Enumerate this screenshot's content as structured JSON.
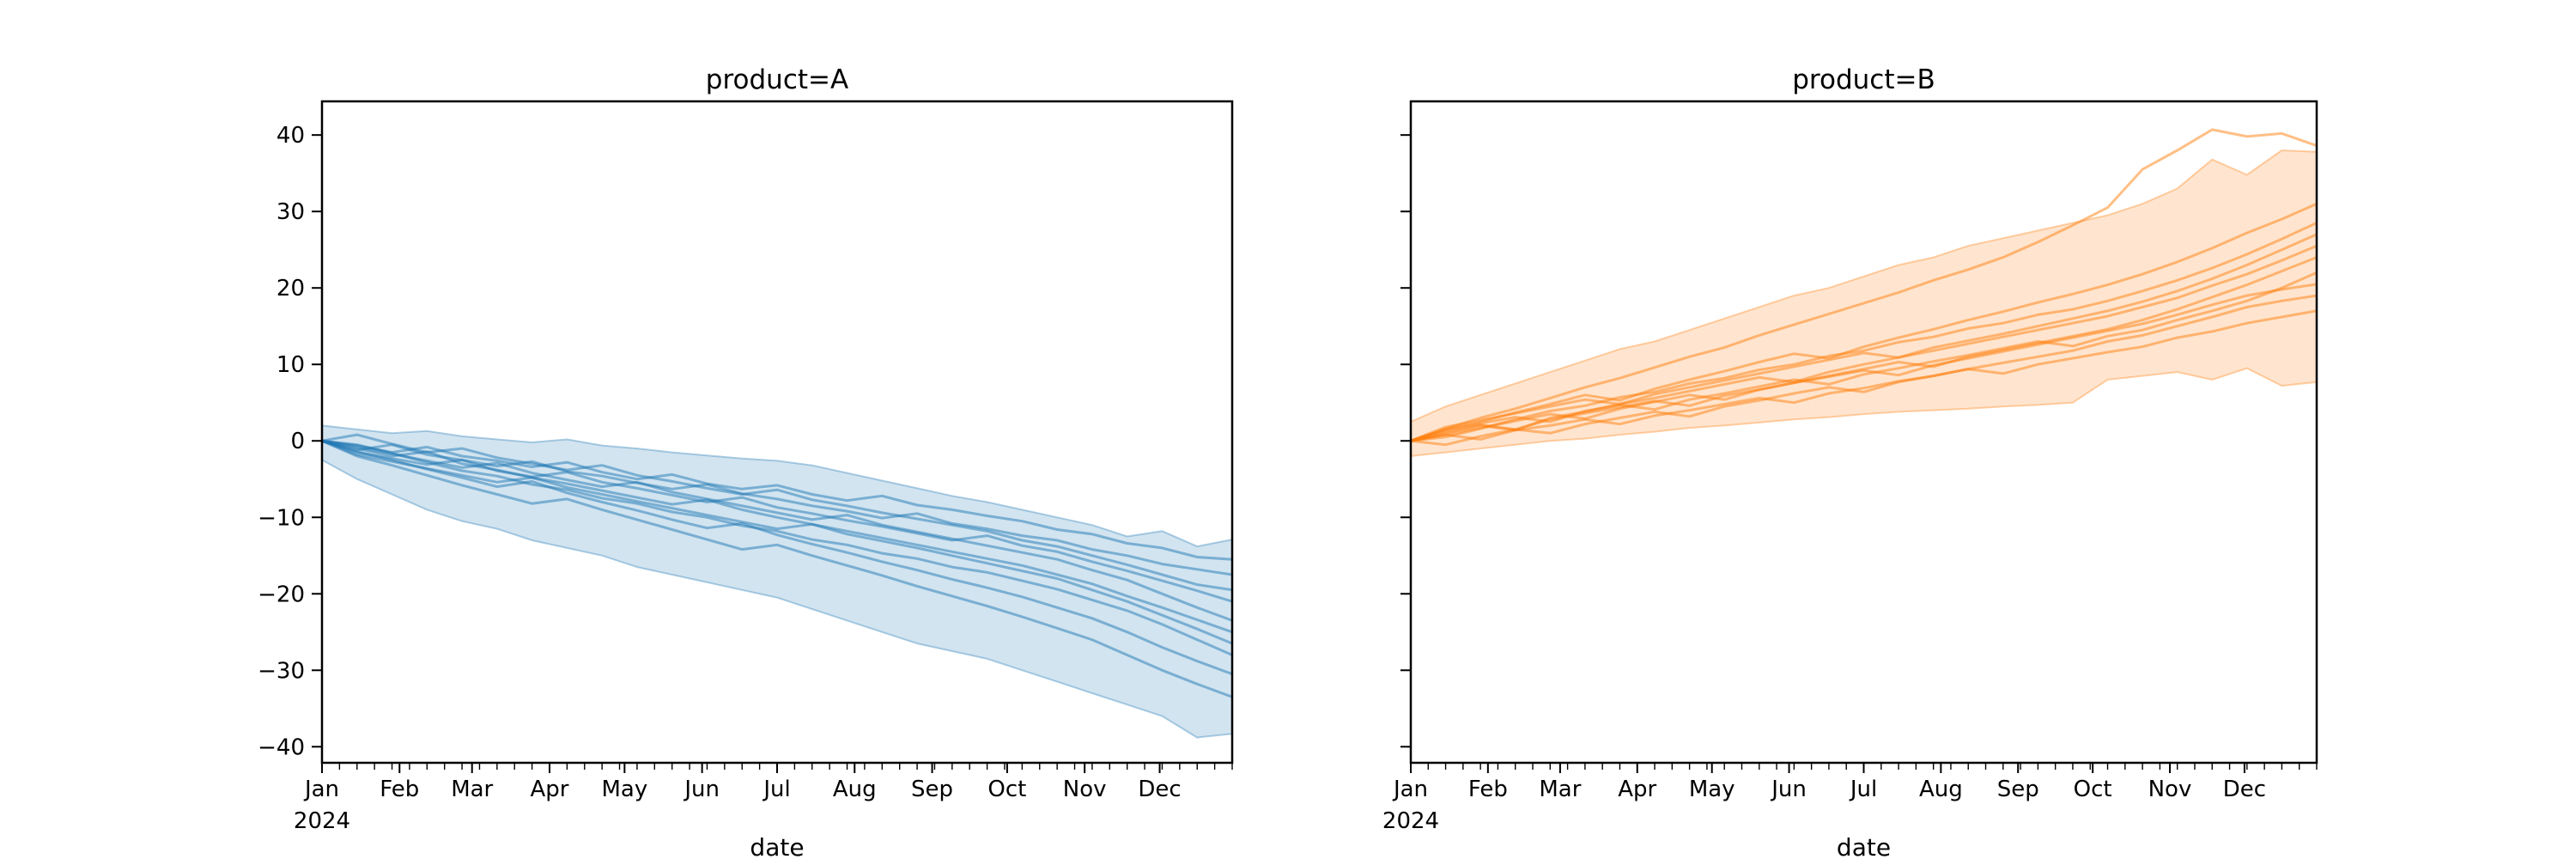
{
  "figure": {
    "background": "#ffffff"
  },
  "chart_data": [
    {
      "type": "line",
      "title": "product=A",
      "xlabel": "date",
      "color": "#1f77b4",
      "x_tick_labels": [
        "Jan",
        "Feb",
        "Mar",
        "Apr",
        "May",
        "Jun",
        "Jul",
        "Aug",
        "Sep",
        "Oct",
        "Nov",
        "Dec"
      ],
      "x_tick_days": [
        0,
        31,
        60,
        91,
        121,
        152,
        182,
        213,
        244,
        274,
        305,
        335
      ],
      "x_first_tick_sublabel": "2024",
      "x_minor_tick_step_days": 7,
      "xlim_days": [
        0,
        364
      ],
      "ylim": [
        -42.1,
        44.4
      ],
      "y_tick_values": [
        40,
        30,
        20,
        10,
        0,
        -10,
        -20,
        -30,
        -40
      ],
      "y_tick_labels": [
        "40",
        "30",
        "20",
        "10",
        "0",
        "−10",
        "−20",
        "−30",
        "−40"
      ],
      "show_y_tick_labels": true,
      "band": {
        "upper": [
          2.0,
          1.5,
          1.0,
          1.3,
          0.6,
          0.2,
          -0.2,
          0.2,
          -0.6,
          -1.0,
          -1.5,
          -1.9,
          -2.3,
          -2.6,
          -3.2,
          -4.2,
          -5.2,
          -6.2,
          -7.2,
          -8.0,
          -9.0,
          -10.0,
          -11.0,
          -12.5,
          -11.8,
          -13.8,
          -12.9
        ],
        "lower": [
          -2.5,
          -5.0,
          -7.0,
          -9.0,
          -10.5,
          -11.5,
          -13.0,
          -14.0,
          -15.0,
          -16.5,
          -17.5,
          -18.5,
          -19.5,
          -20.5,
          -22.0,
          -23.5,
          -25.0,
          -26.5,
          -27.5,
          -28.5,
          -30.0,
          -31.5,
          -33.0,
          -34.5,
          -36.0,
          -38.8,
          -38.3
        ]
      },
      "series": [
        [
          0,
          -0.6,
          -1.5,
          -0.8,
          -2.0,
          -2.6,
          -3.4,
          -2.8,
          -4.1,
          -5.0,
          -4.4,
          -5.6,
          -6.3,
          -5.8,
          -7.0,
          -7.8,
          -7.2,
          -8.4,
          -9.0,
          -9.8,
          -10.5,
          -11.6,
          -12.2,
          -13.4,
          -14.0,
          -15.2,
          -15.5
        ],
        [
          0,
          -1.2,
          -0.5,
          -1.8,
          -2.5,
          -3.3,
          -2.7,
          -4.0,
          -4.6,
          -5.5,
          -6.3,
          -5.7,
          -6.9,
          -7.6,
          -8.5,
          -9.2,
          -10.1,
          -9.5,
          -10.8,
          -11.5,
          -12.4,
          -13.0,
          -14.2,
          -15.0,
          -16.1,
          -16.8,
          -17.5
        ],
        [
          0,
          0.8,
          -0.4,
          -1.5,
          -1.0,
          -2.2,
          -3.0,
          -3.8,
          -3.2,
          -4.5,
          -5.3,
          -6.2,
          -7.0,
          -6.4,
          -7.7,
          -8.5,
          -9.4,
          -10.2,
          -11.0,
          -11.8,
          -13.0,
          -13.8,
          -15.0,
          -16.2,
          -17.5,
          -18.8,
          -19.5
        ],
        [
          0,
          -1.5,
          -2.3,
          -3.1,
          -2.5,
          -3.9,
          -4.7,
          -4.1,
          -5.4,
          -6.2,
          -7.1,
          -8.0,
          -7.4,
          -8.7,
          -9.5,
          -10.4,
          -11.2,
          -12.1,
          -13.0,
          -12.4,
          -13.7,
          -14.5,
          -15.8,
          -17.0,
          -18.3,
          -19.6,
          -21.0
        ],
        [
          0,
          -0.8,
          -1.7,
          -2.6,
          -3.5,
          -2.9,
          -4.2,
          -5.1,
          -6.0,
          -5.4,
          -6.7,
          -7.6,
          -8.5,
          -9.4,
          -10.3,
          -9.7,
          -11.0,
          -11.9,
          -12.8,
          -13.7,
          -14.6,
          -15.5,
          -16.9,
          -18.2,
          -20.0,
          -21.8,
          -23.5
        ],
        [
          0,
          -1.0,
          -2.0,
          -1.4,
          -3.0,
          -3.8,
          -4.8,
          -5.6,
          -6.5,
          -7.4,
          -8.3,
          -7.7,
          -9.0,
          -10.0,
          -10.9,
          -11.8,
          -12.7,
          -13.6,
          -14.5,
          -15.4,
          -16.3,
          -17.5,
          -18.7,
          -20.3,
          -21.8,
          -23.4,
          -25.0
        ],
        [
          0,
          -1.8,
          -2.7,
          -3.6,
          -4.5,
          -5.4,
          -4.8,
          -6.1,
          -7.0,
          -7.9,
          -8.8,
          -9.7,
          -10.6,
          -11.5,
          -10.9,
          -12.2,
          -13.1,
          -14.0,
          -15.0,
          -16.0,
          -17.0,
          -18.0,
          -19.5,
          -21.0,
          -22.8,
          -24.6,
          -26.5
        ],
        [
          0,
          -0.5,
          -1.6,
          -2.8,
          -3.9,
          -4.6,
          -5.7,
          -6.4,
          -7.5,
          -8.2,
          -9.3,
          -10.0,
          -11.1,
          -11.8,
          -12.9,
          -13.6,
          -14.7,
          -15.4,
          -16.5,
          -17.2,
          -18.3,
          -19.4,
          -20.8,
          -22.2,
          -24.0,
          -26.0,
          -28.0
        ],
        [
          0,
          -1.4,
          -2.5,
          -3.7,
          -4.8,
          -6.0,
          -5.3,
          -6.8,
          -8.0,
          -9.1,
          -10.3,
          -11.4,
          -10.8,
          -12.3,
          -13.5,
          -14.6,
          -15.8,
          -16.9,
          -18.1,
          -19.2,
          -20.4,
          -21.8,
          -23.2,
          -25.0,
          -27.0,
          -28.8,
          -30.5
        ],
        [
          0,
          -2.0,
          -3.2,
          -4.5,
          -5.8,
          -7.0,
          -8.2,
          -7.6,
          -9.0,
          -10.3,
          -11.6,
          -12.9,
          -14.2,
          -13.6,
          -15.0,
          -16.3,
          -17.6,
          -19.0,
          -20.3,
          -21.6,
          -23.0,
          -24.5,
          -26.0,
          -28.0,
          -30.0,
          -31.8,
          -33.5
        ]
      ]
    },
    {
      "type": "line",
      "title": "product=B",
      "xlabel": "date",
      "color": "#ff7f0e",
      "x_tick_labels": [
        "Jan",
        "Feb",
        "Mar",
        "Apr",
        "May",
        "Jun",
        "Jul",
        "Aug",
        "Sep",
        "Oct",
        "Nov",
        "Dec"
      ],
      "x_tick_days": [
        0,
        31,
        60,
        91,
        121,
        152,
        182,
        213,
        244,
        274,
        305,
        335
      ],
      "x_first_tick_sublabel": "2024",
      "x_minor_tick_step_days": 7,
      "xlim_days": [
        0,
        364
      ],
      "ylim": [
        -42.1,
        44.4
      ],
      "y_tick_values": [
        40,
        30,
        20,
        10,
        0,
        -10,
        -20,
        -30,
        -40
      ],
      "y_tick_labels": [
        "40",
        "30",
        "20",
        "10",
        "0",
        "−10",
        "−20",
        "−30",
        "−40"
      ],
      "show_y_tick_labels": false,
      "band": {
        "upper": [
          2.5,
          4.5,
          6.0,
          7.5,
          9.0,
          10.5,
          12.0,
          13.0,
          14.5,
          16.0,
          17.5,
          19.0,
          20.0,
          21.5,
          23.0,
          24.0,
          25.5,
          26.5,
          27.5,
          28.5,
          29.5,
          31.0,
          33.0,
          36.8,
          34.8,
          38.0,
          37.8
        ],
        "lower": [
          -2.0,
          -1.5,
          -1.0,
          -0.5,
          0.0,
          0.3,
          0.8,
          1.2,
          1.7,
          2.0,
          2.4,
          2.8,
          3.1,
          3.5,
          3.8,
          4.0,
          4.2,
          4.5,
          4.7,
          5.0,
          8.0,
          8.5,
          9.0,
          8.0,
          9.5,
          7.2,
          7.7
        ]
      },
      "series": [
        [
          0,
          0.8,
          0.2,
          1.4,
          2.0,
          2.8,
          2.2,
          3.3,
          4.0,
          4.8,
          5.6,
          5.0,
          6.2,
          6.9,
          7.8,
          8.5,
          9.4,
          8.8,
          10.0,
          10.8,
          11.6,
          12.3,
          13.5,
          14.3,
          15.4,
          16.2,
          17.0
        ],
        [
          0,
          -0.5,
          0.6,
          1.5,
          1.0,
          2.2,
          3.0,
          3.8,
          3.2,
          4.5,
          5.3,
          6.2,
          7.0,
          6.4,
          7.7,
          8.5,
          9.4,
          10.2,
          11.0,
          11.8,
          13.0,
          13.8,
          15.0,
          16.2,
          17.5,
          18.3,
          19.0
        ],
        [
          0,
          1.2,
          2.1,
          1.5,
          2.8,
          3.6,
          4.4,
          5.2,
          4.6,
          5.9,
          6.7,
          7.6,
          8.4,
          9.2,
          8.6,
          9.9,
          10.8,
          11.7,
          12.6,
          13.5,
          14.4,
          15.3,
          16.5,
          17.8,
          19.0,
          19.8,
          20.5
        ],
        [
          0,
          1.5,
          2.3,
          3.1,
          2.5,
          3.9,
          4.7,
          4.1,
          5.4,
          6.2,
          7.1,
          8.0,
          7.4,
          8.7,
          9.5,
          10.4,
          11.2,
          12.1,
          13.0,
          12.4,
          13.7,
          14.5,
          15.8,
          17.0,
          18.3,
          20.0,
          22.0
        ],
        [
          0,
          0.8,
          1.7,
          2.6,
          3.5,
          2.9,
          4.2,
          5.1,
          6.0,
          5.4,
          6.7,
          7.6,
          8.5,
          9.4,
          10.3,
          9.7,
          11.0,
          11.9,
          12.8,
          13.7,
          14.6,
          15.8,
          17.2,
          18.8,
          20.4,
          22.2,
          24.0
        ],
        [
          0,
          1.0,
          2.0,
          1.4,
          3.0,
          3.8,
          4.8,
          5.6,
          6.5,
          7.4,
          8.3,
          7.7,
          9.0,
          10.0,
          10.9,
          11.8,
          12.7,
          13.6,
          14.5,
          15.4,
          16.3,
          17.5,
          18.7,
          20.3,
          21.8,
          23.6,
          25.5
        ],
        [
          0,
          1.8,
          2.7,
          3.6,
          4.5,
          5.4,
          4.8,
          6.1,
          7.0,
          7.9,
          8.8,
          9.7,
          10.6,
          11.5,
          10.9,
          12.2,
          13.1,
          14.0,
          15.0,
          16.0,
          17.0,
          18.2,
          19.6,
          21.2,
          23.0,
          25.0,
          27.0
        ],
        [
          0,
          0.5,
          1.6,
          2.8,
          3.9,
          4.6,
          5.7,
          6.4,
          7.5,
          8.2,
          9.3,
          10.0,
          11.1,
          11.8,
          12.9,
          13.6,
          14.7,
          15.4,
          16.5,
          17.2,
          18.3,
          19.6,
          21.0,
          22.6,
          24.4,
          26.4,
          28.5
        ],
        [
          0,
          1.4,
          2.5,
          3.7,
          4.8,
          6.0,
          5.3,
          6.8,
          8.0,
          9.1,
          10.3,
          11.4,
          10.8,
          12.3,
          13.5,
          14.6,
          15.8,
          16.9,
          18.1,
          19.2,
          20.4,
          21.8,
          23.4,
          25.2,
          27.2,
          29.0,
          31.0
        ],
        [
          0,
          1.6,
          3.0,
          4.2,
          5.6,
          7.0,
          8.2,
          9.6,
          11.0,
          12.2,
          13.8,
          15.2,
          16.6,
          18.0,
          19.4,
          21.0,
          22.4,
          24.0,
          26.0,
          28.2,
          30.5,
          35.5,
          38.0,
          40.7,
          39.8,
          40.2,
          38.6
        ]
      ]
    }
  ]
}
